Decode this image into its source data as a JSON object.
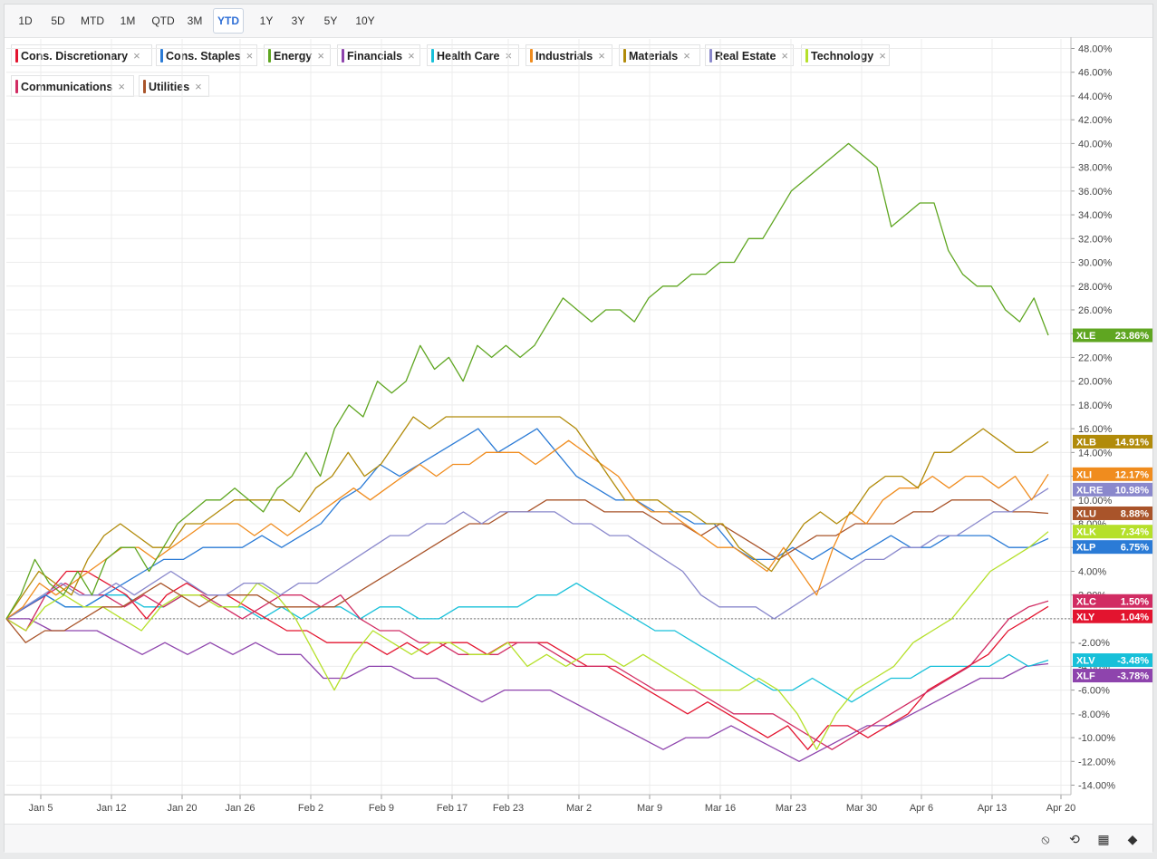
{
  "toolbar": {
    "ranges": [
      "1D",
      "5D",
      "MTD",
      "1M",
      "QTD",
      "3M",
      "YTD",
      "1Y",
      "3Y",
      "5Y",
      "10Y"
    ],
    "active": "YTD"
  },
  "legend": [
    {
      "label": "Cons. Discretionary",
      "color": "#e3142f"
    },
    {
      "label": "Cons. Staples",
      "color": "#2b7bd6"
    },
    {
      "label": "Energy",
      "color": "#5fa621"
    },
    {
      "label": "Financials",
      "color": "#8e44ad"
    },
    {
      "label": "Health Care",
      "color": "#17c0d9"
    },
    {
      "label": "Industrials",
      "color": "#f08c1e"
    },
    {
      "label": "Materials",
      "color": "#b18b0a"
    },
    {
      "label": "Real Estate",
      "color": "#8a88cc"
    },
    {
      "label": "Technology",
      "color": "#b5e02a"
    },
    {
      "label": "Communications",
      "color": "#d12c63"
    },
    {
      "label": "Utilities",
      "color": "#a9542a"
    }
  ],
  "footer_icons": [
    "hide-icon",
    "reset-icon",
    "grid-icon",
    "tags-icon"
  ],
  "chart_data": {
    "type": "line",
    "title": "",
    "xlabel": "",
    "ylabel": "",
    "x_ticks": [
      "Jan 5",
      "Jan 12",
      "Jan 20",
      "Jan 26",
      "Feb 2",
      "Feb 9",
      "Feb 17",
      "Feb 23",
      "Mar 2",
      "Mar 9",
      "Mar 16",
      "Mar 23",
      "Mar 30",
      "Apr 6",
      "Apr 13",
      "Apr 20"
    ],
    "y_ticks": [
      "48.00%",
      "46.00%",
      "44.00%",
      "42.00%",
      "40.00%",
      "38.00%",
      "36.00%",
      "34.00%",
      "32.00%",
      "30.00%",
      "28.00%",
      "26.00%",
      "24.00%",
      "22.00%",
      "20.00%",
      "18.00%",
      "16.00%",
      "14.00%",
      "12.00%",
      "10.00%",
      "8.00%",
      "6.00%",
      "4.00%",
      "2.00%",
      "0.00%",
      "-2.00%",
      "-4.00%",
      "-6.00%",
      "-8.00%",
      "-10.00%",
      "-12.00%",
      "-14.00%"
    ],
    "ylim": [
      -14.8,
      48.8
    ],
    "y_unit": "%",
    "grid": true,
    "baseline": 0,
    "series": [
      {
        "name": "Energy",
        "ticker": "XLE",
        "color": "#5fa621",
        "last": "23.86%",
        "values": [
          0,
          2,
          5,
          3,
          2,
          4,
          2,
          5,
          6,
          6,
          4,
          6,
          8,
          9,
          10,
          10,
          11,
          10,
          9,
          11,
          12,
          14,
          12,
          16,
          18,
          17,
          20,
          19,
          20,
          23,
          21,
          22,
          20,
          23,
          22,
          23,
          22,
          23,
          25,
          27,
          26,
          25,
          26,
          26,
          25,
          27,
          28,
          28,
          29,
          29,
          30,
          30,
          32,
          32,
          34,
          36,
          37,
          38,
          39,
          40,
          39,
          38,
          33,
          34,
          35,
          35,
          31,
          29,
          28,
          28,
          26,
          25,
          27,
          23.86
        ]
      },
      {
        "name": "Materials",
        "ticker": "XLB",
        "color": "#b18b0a",
        "last": "14.91%",
        "values": [
          0,
          2,
          4,
          3,
          2,
          5,
          7,
          8,
          7,
          6,
          6,
          8,
          8,
          9,
          10,
          10,
          10,
          10,
          9,
          11,
          12,
          14,
          12,
          13,
          15,
          17,
          16,
          17,
          17,
          17,
          17,
          17,
          17,
          17,
          17,
          16,
          14,
          12,
          10,
          10,
          10,
          9,
          9,
          8,
          8,
          6,
          5,
          4,
          6,
          8,
          9,
          8,
          9,
          11,
          12,
          12,
          11,
          14,
          14,
          15,
          16,
          15,
          14,
          14,
          14.91
        ]
      },
      {
        "name": "Industrials",
        "ticker": "XLI",
        "color": "#f08c1e",
        "last": "12.17%",
        "values": [
          0,
          1,
          3,
          2,
          3,
          4,
          5,
          6,
          6,
          5,
          6,
          7,
          8,
          8,
          8,
          7,
          8,
          7,
          8,
          9,
          10,
          11,
          10,
          11,
          12,
          13,
          12,
          13,
          13,
          14,
          14,
          14,
          13,
          14,
          15,
          14,
          13,
          12,
          10,
          9,
          9,
          8,
          7,
          6,
          6,
          5,
          4,
          6,
          4,
          2,
          6,
          9,
          8,
          10,
          11,
          11,
          12,
          11,
          12,
          12,
          11,
          12,
          10,
          12.17
        ]
      },
      {
        "name": "Real Estate",
        "ticker": "XLRE",
        "color": "#8a88cc",
        "last": "10.98%",
        "values": [
          0,
          1,
          2,
          3,
          2,
          2,
          3,
          2,
          3,
          4,
          3,
          2,
          2,
          3,
          3,
          2,
          3,
          3,
          4,
          5,
          6,
          7,
          7,
          8,
          8,
          9,
          8,
          9,
          9,
          9,
          9,
          8,
          8,
          7,
          7,
          6,
          5,
          4,
          2,
          1,
          1,
          1,
          0,
          1,
          2,
          3,
          4,
          5,
          5,
          6,
          6,
          7,
          7,
          8,
          9,
          9,
          10,
          10.98
        ]
      },
      {
        "name": "Utilities",
        "ticker": "XLU",
        "color": "#a9542a",
        "last": "8.88%",
        "values": [
          0,
          -2,
          -1,
          -1,
          0,
          1,
          1,
          2,
          3,
          2,
          1,
          2,
          2,
          2,
          1,
          1,
          1,
          1,
          2,
          3,
          4,
          5,
          6,
          7,
          8,
          8,
          9,
          9,
          10,
          10,
          10,
          9,
          9,
          9,
          8,
          8,
          7,
          8,
          7,
          6,
          5,
          6,
          7,
          7,
          8,
          8,
          8,
          9,
          9,
          10,
          10,
          10,
          9,
          9,
          8.88
        ]
      },
      {
        "name": "Technology",
        "ticker": "XLK",
        "color": "#b5e02a",
        "last": "7.34%",
        "values": [
          0,
          -1,
          1,
          2,
          1,
          1,
          0,
          -1,
          1,
          2,
          2,
          1,
          1,
          3,
          2,
          0,
          -3,
          -6,
          -3,
          -1,
          -2,
          -3,
          -2,
          -2,
          -3,
          -3,
          -2,
          -4,
          -3,
          -4,
          -3,
          -3,
          -4,
          -3,
          -4,
          -5,
          -6,
          -6,
          -6,
          -5,
          -6,
          -8,
          -11,
          -8,
          -6,
          -5,
          -4,
          -2,
          -1,
          0,
          2,
          4,
          5,
          6,
          7.34
        ]
      },
      {
        "name": "Cons. Staples",
        "ticker": "XLP",
        "color": "#2b7bd6",
        "last": "6.75%",
        "values": [
          0,
          1,
          2,
          1,
          1,
          2,
          3,
          4,
          5,
          5,
          6,
          6,
          6,
          7,
          6,
          7,
          8,
          10,
          11,
          13,
          12,
          13,
          14,
          15,
          16,
          14,
          15,
          16,
          14,
          12,
          11,
          10,
          10,
          9,
          9,
          8,
          8,
          6,
          5,
          5,
          6,
          5,
          6,
          5,
          6,
          7,
          6,
          6,
          7,
          7,
          7,
          6,
          6,
          6.75
        ]
      },
      {
        "name": "Communications",
        "ticker": "XLC",
        "color": "#d12c63",
        "last": "1.50%",
        "values": [
          0,
          -1,
          2,
          3,
          2,
          2,
          1,
          2,
          1,
          2,
          2,
          1,
          0,
          1,
          2,
          2,
          1,
          2,
          0,
          -1,
          -1,
          -2,
          -2,
          -3,
          -3,
          -3,
          -2,
          -2,
          -3,
          -4,
          -4,
          -4,
          -5,
          -6,
          -6,
          -6,
          -7,
          -8,
          -8,
          -8,
          -9,
          -10,
          -11,
          -10,
          -9,
          -8,
          -7,
          -6,
          -5,
          -4,
          -2,
          0,
          1,
          1.5
        ]
      },
      {
        "name": "Cons. Discretionary",
        "ticker": "XLY",
        "color": "#e3142f",
        "last": "1.04%",
        "values": [
          0,
          1,
          2,
          4,
          4,
          3,
          2,
          0,
          2,
          3,
          2,
          2,
          1,
          0,
          -1,
          -1,
          -2,
          -2,
          -2,
          -3,
          -2,
          -3,
          -2,
          -2,
          -3,
          -2,
          -2,
          -2,
          -3,
          -4,
          -4,
          -5,
          -6,
          -7,
          -8,
          -7,
          -8,
          -9,
          -10,
          -9,
          -11,
          -9,
          -9,
          -10,
          -9,
          -8,
          -6,
          -5,
          -4,
          -3,
          -1,
          0,
          1.04
        ]
      },
      {
        "name": "Health Care",
        "ticker": "XLV",
        "color": "#17c0d9",
        "last": "-3.48%",
        "values": [
          0,
          1,
          2,
          1,
          1,
          2,
          2,
          1,
          1,
          2,
          2,
          1,
          1,
          0,
          1,
          0,
          1,
          1,
          0,
          1,
          1,
          0,
          0,
          1,
          1,
          1,
          1,
          2,
          2,
          3,
          2,
          1,
          0,
          -1,
          -1,
          -2,
          -3,
          -4,
          -5,
          -6,
          -6,
          -5,
          -6,
          -7,
          -6,
          -5,
          -5,
          -4,
          -4,
          -4,
          -4,
          -3,
          -4,
          -3.48
        ]
      },
      {
        "name": "Financials",
        "ticker": "XLF",
        "color": "#8e44ad",
        "last": "-3.78%",
        "values": [
          0,
          0,
          -1,
          -1,
          -1,
          -2,
          -3,
          -2,
          -3,
          -2,
          -3,
          -2,
          -3,
          -3,
          -5,
          -5,
          -4,
          -4,
          -5,
          -5,
          -6,
          -7,
          -6,
          -6,
          -6,
          -7,
          -8,
          -9,
          -10,
          -11,
          -10,
          -10,
          -9,
          -10,
          -11,
          -12,
          -11,
          -10,
          -9,
          -9,
          -8,
          -7,
          -6,
          -5,
          -5,
          -4,
          -3.78
        ]
      }
    ]
  }
}
